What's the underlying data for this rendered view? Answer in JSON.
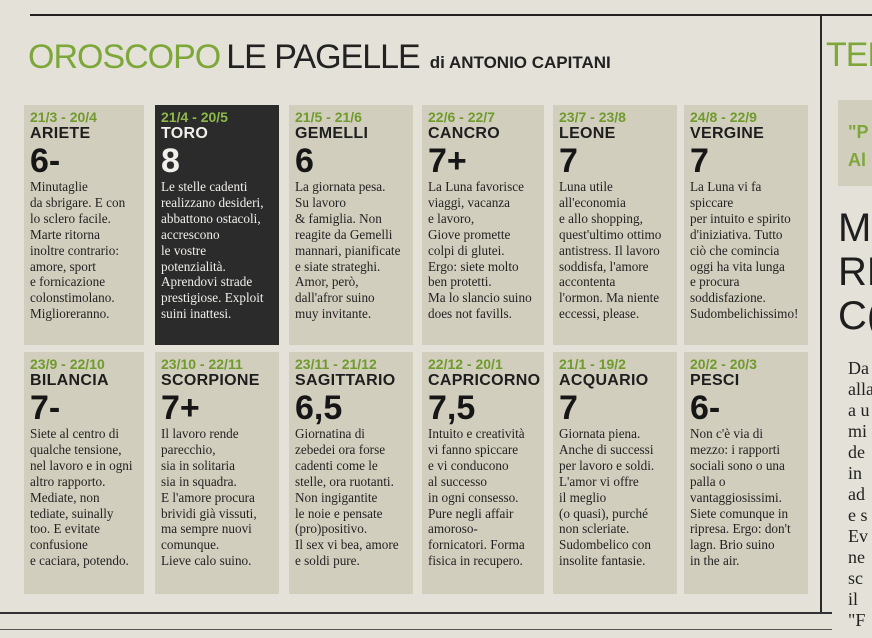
{
  "masthead": {
    "section": "OROSCOPO",
    "title": "LE PAGELLE",
    "byline": "di ANTONIO CAPITANI"
  },
  "sidebar": {
    "title": "TEL",
    "box_lines": [
      "\"P",
      "Al"
    ],
    "headline_lines": [
      "M",
      "RE",
      "C("
    ],
    "body_lines": [
      "Da",
      "alla",
      "a u",
      "mi",
      "de",
      "in",
      "ad",
      "e s",
      "Ev",
      "ne",
      "sc",
      "il",
      "\"F"
    ]
  },
  "signs": [
    {
      "dates": "21/3 - 20/4",
      "name": "ARIETE",
      "grade": "6-",
      "text": [
        "Minutaglie",
        "da sbrigare. E con",
        "lo sclero facile.",
        "Marte ritorna",
        "inoltre contrario:",
        "amore, sport",
        "e fornicazione",
        "colonstimolano.",
        "Miglioreranno."
      ]
    },
    {
      "dates": "21/4 - 20/5",
      "name": "TORO",
      "grade": "8",
      "text": [
        "Le stelle cadenti",
        "realizzano desideri,",
        "abbattono ostacoli,",
        "accrescono",
        "le vostre",
        "potenzialità.",
        "Aprendovi strade",
        "prestigiose. Exploit",
        "suini inattesi."
      ]
    },
    {
      "dates": "21/5 - 21/6",
      "name": "GEMELLI",
      "grade": "6",
      "text": [
        "La giornata pesa.",
        "Su lavoro",
        "& famiglia. Non",
        "reagite da Gemelli",
        "mannari, pianificate",
        "e siate strateghi.",
        "Amor, però,",
        "dall'afror suino",
        "muy invitante."
      ]
    },
    {
      "dates": "22/6 - 22/7",
      "name": "CANCRO",
      "grade": "7+",
      "text": [
        "La Luna favorisce",
        "viaggi, vacanza",
        "e lavoro,",
        "Giove promette",
        "colpi di glutei.",
        "Ergo: siete molto",
        "ben protetti.",
        "Ma lo slancio suino",
        "does not favills."
      ]
    },
    {
      "dates": "23/7 - 23/8",
      "name": "LEONE",
      "grade": "7",
      "text": [
        "Luna utile",
        "all'economia",
        "e allo shopping,",
        "quest'ultimo ottimo",
        "antistress. Il lavoro",
        "soddisfa, l'amore",
        "accontenta",
        "l'ormon. Ma niente",
        "eccessi, please."
      ]
    },
    {
      "dates": "24/8 - 22/9",
      "name": "VERGINE",
      "grade": "7",
      "text": [
        "La Luna vi fa",
        "spiccare",
        "per intuito e spirito",
        "d'iniziativa. Tutto",
        "ciò che comincia",
        "oggi ha vita lunga",
        "e procura",
        "soddisfazione.",
        "Sudombelichissimo!"
      ]
    },
    {
      "dates": "23/9 - 22/10",
      "name": "BILANCIA",
      "grade": "7-",
      "text": [
        "Siete al centro di",
        "qualche tensione,",
        "nel lavoro e in ogni",
        "altro rapporto.",
        "Mediate, non",
        "tediate, suinally",
        "too. E evitate",
        "confusione",
        "e caciara, potendo."
      ]
    },
    {
      "dates": "23/10 - 22/11",
      "name": "SCORPIONE",
      "grade": "7+",
      "text": [
        "Il lavoro rende",
        "parecchio,",
        "sia in solitaria",
        "sia in squadra.",
        "E l'amore procura",
        "brividi già vissuti,",
        "ma sempre nuovi",
        "comunque.",
        "Lieve calo suino."
      ]
    },
    {
      "dates": "23/11 - 21/12",
      "name": "SAGITTARIO",
      "grade": "6,5",
      "text": [
        "Giornatina di",
        "zebedei ora forse",
        "cadenti come le",
        "stelle, ora ruotanti.",
        "Non ingigantite",
        "le noie e pensate",
        "(pro)positivo.",
        "Il sex vi bea, amore",
        "e soldi pure."
      ]
    },
    {
      "dates": "22/12 - 20/1",
      "name": "CAPRICORNO",
      "grade": "7,5",
      "text": [
        "Intuito e creatività",
        "vi fanno spiccare",
        "e vi conducono",
        "al successo",
        "in ogni consesso.",
        "Pure negli affair",
        "amoroso-",
        "fornicatori. Forma",
        "fisica in recupero."
      ]
    },
    {
      "dates": "21/1 - 19/2",
      "name": "ACQUARIO",
      "grade": "7",
      "text": [
        "Giornata piena.",
        "Anche di successi",
        "per lavoro e soldi.",
        "L'amor vi offre",
        "il meglio",
        "(o quasi), purché",
        "non scleriate.",
        "Sudombelico con",
        "insolite fantasie."
      ]
    },
    {
      "dates": "20/2 - 20/3",
      "name": "PESCI",
      "grade": "6-",
      "text": [
        "Non c'è via di",
        "mezzo: i rapporti",
        "sociali sono o una",
        "palla o",
        "vantaggiosissimi.",
        "Siete comunque in",
        "ripresa. Ergo: don't",
        "lagn. Brio suino",
        "in the air."
      ]
    }
  ]
}
